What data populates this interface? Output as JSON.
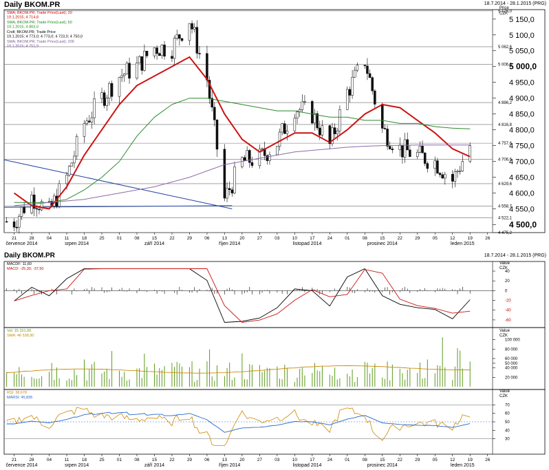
{
  "price_chart": {
    "title": "Daily BKOM.PR",
    "date_range": "18.7.2014 - 28.1.2015 (PRG)",
    "axis_label": "Price",
    "currency": "CZK",
    "legend": [
      {
        "label": "SMA; BKOM.PR; Trade Price(Last); 20",
        "value": "19.1.2015; 4 714,8",
        "color": "#cc0000"
      },
      {
        "label": "SMA; BKOM.PR; Trade Price(Last); 50",
        "value": "19.1.2015; 4 803,0",
        "color": "#1a8a1a"
      },
      {
        "label": "Cndl; BKOM.PR; Trade Price",
        "value": "19.1.2015; 4 773,0; 4 773,0; 4 723,0; 4 750,0",
        "color": "#000000"
      },
      {
        "label": "SMA; BKOM.PR; Trade Price(Last); 200",
        "value": "19.1.2015; 4 751,9",
        "color": "#7a5a9a"
      }
    ],
    "y_ticks": [
      "4 500,0",
      "4 550,0",
      "4 600,0",
      "4 650,0",
      "4 700,0",
      "4 750,0",
      "4 800,0",
      "4 850,0",
      "4 900,0",
      "4 950,0",
      "5 000,0",
      "5 050,0",
      "5 100,0",
      "5 150,0"
    ],
    "level_lines": [
      {
        "value": 5176,
        "label": "5 176,0"
      },
      {
        "value": 5062.6,
        "label": "5 062,6"
      },
      {
        "value": 5006.6,
        "label": "5 006,6"
      },
      {
        "value": 4886.2,
        "label": "4 886,2"
      },
      {
        "value": 4816.8,
        "label": "4 816,8"
      },
      {
        "value": 4757.6,
        "label": "4 757,6"
      },
      {
        "value": 4706.6,
        "label": "4 706,6"
      },
      {
        "value": 4629.6,
        "label": "4 629,6"
      },
      {
        "value": 4558.7,
        "label": "4 558,7"
      },
      {
        "value": 4522.1,
        "label": "4 522,1"
      },
      {
        "value": 4475.2,
        "label": "4 475,2"
      }
    ]
  },
  "time_axis": {
    "day_ticks": [
      "21",
      "28",
      "04",
      "11",
      "18",
      "25",
      "01",
      "08",
      "15",
      "22",
      "29",
      "06",
      "13",
      "20",
      "27",
      "03",
      "10",
      "17",
      "24",
      "01",
      "08",
      "15",
      "22",
      "29",
      "05",
      "12",
      "19",
      "26"
    ],
    "months": [
      "července 2014",
      "srpen 2014",
      "září 2014",
      "říjen 2014",
      "listopad 2014",
      "prosinec 2014",
      "leden 2015"
    ]
  },
  "macd_chart": {
    "title": "Daily BKOM.PR",
    "date_range": "18.7.2014 - 28.1.2015 (PRG)",
    "legend": [
      {
        "label": "MACDF: 11,60",
        "color": "#000000"
      },
      {
        "label": "MACD: -25,30; -37,50",
        "color": "#cc0000"
      }
    ],
    "axis_label": "Value",
    "currency": "CZK",
    "y_ticks": [
      "40",
      "20",
      "0",
      "-20",
      "-40",
      "-60"
    ]
  },
  "volume_chart": {
    "legend": [
      {
        "label": "Vol: 15 151,00",
        "color": "#5a9a1a"
      },
      {
        "label": "SMA: 46 538,90",
        "color": "#cc8800"
      }
    ],
    "axis_label": "Value",
    "currency": "CZK",
    "y_ticks": [
      "100 000",
      "80 000",
      "60 000",
      "50 000",
      "40 000",
      "20 000"
    ]
  },
  "rsi_chart": {
    "legend": [
      {
        "label": "RSI: 38,678",
        "color": "#cc8800"
      },
      {
        "label": "MARSI: 45,835",
        "color": "#2266cc"
      }
    ],
    "axis_label": "Value",
    "currency": "CZK",
    "y_ticks": [
      "70",
      "60",
      "50",
      "40",
      "30"
    ]
  },
  "chart_data": {
    "type": "line",
    "x": [
      "2014-07-21",
      "2014-07-28",
      "2014-08-04",
      "2014-08-11",
      "2014-08-18",
      "2014-08-25",
      "2014-09-01",
      "2014-09-08",
      "2014-09-15",
      "2014-09-22",
      "2014-09-29",
      "2014-10-06",
      "2014-10-13",
      "2014-10-20",
      "2014-10-27",
      "2014-11-03",
      "2014-11-10",
      "2014-11-17",
      "2014-11-24",
      "2014-12-01",
      "2014-12-08",
      "2014-12-15",
      "2014-12-22",
      "2014-12-29",
      "2015-01-05",
      "2015-01-12",
      "2015-01-19"
    ],
    "series": [
      {
        "name": "Close",
        "values": [
          4510,
          4590,
          4540,
          4650,
          4820,
          4900,
          4970,
          5000,
          5060,
          5060,
          5150,
          4960,
          4580,
          4700,
          4710,
          4760,
          4870,
          4850,
          4750,
          4920,
          5020,
          4800,
          4740,
          4720,
          4700,
          4640,
          4750
        ]
      },
      {
        "name": "SMA 20",
        "values": [
          4600,
          4560,
          4550,
          4620,
          4720,
          4800,
          4880,
          4940,
          4970,
          5000,
          5030,
          4960,
          4850,
          4770,
          4730,
          4760,
          4790,
          4790,
          4760,
          4800,
          4850,
          4880,
          4870,
          4830,
          4790,
          4740,
          4715
        ]
      },
      {
        "name": "SMA 50",
        "values": [
          4570,
          4570,
          4570,
          4580,
          4610,
          4650,
          4700,
          4780,
          4840,
          4880,
          4900,
          4900,
          4890,
          4880,
          4870,
          4860,
          4860,
          4850,
          4840,
          4840,
          4830,
          4830,
          4820,
          4820,
          4810,
          4805,
          4803
        ]
      },
      {
        "name": "SMA 200",
        "values": [
          4560,
          4565,
          4570,
          4575,
          4580,
          4590,
          4600,
          4610,
          4620,
          4635,
          4650,
          4670,
          4690,
          4700,
          4710,
          4720,
          4730,
          4735,
          4740,
          4745,
          4748,
          4750,
          4751,
          4752,
          4752,
          4752,
          4752
        ]
      }
    ],
    "ylim": [
      4475,
      5180
    ],
    "grid": true,
    "legend": "top-left"
  }
}
